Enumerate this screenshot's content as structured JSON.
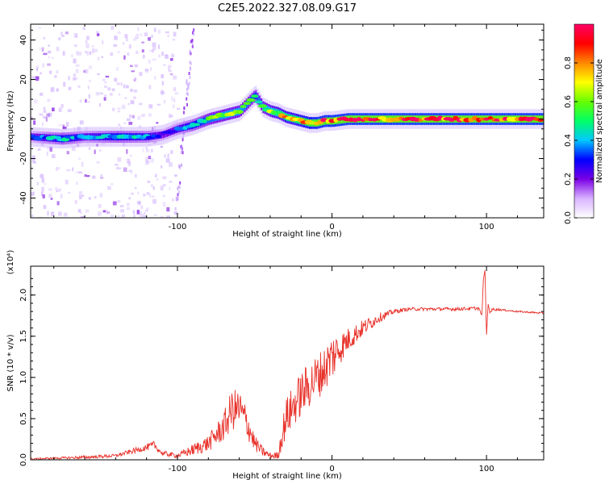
{
  "title": "C2E5.2022.327.08.09.G17",
  "chart_data": [
    {
      "type": "heatmap",
      "xlabel": "Height of straight line (km)",
      "ylabel": "Frequency (Hz)",
      "xlim": [
        -195,
        137
      ],
      "ylim": [
        -50,
        48
      ],
      "x_ticks": [
        -100,
        0,
        100
      ],
      "y_ticks": [
        -40,
        -20,
        0,
        20,
        40
      ],
      "colorbar": {
        "label": "Normalized spectral amplitude",
        "range": [
          0,
          1
        ],
        "ticks": [
          "0.0",
          "0.2",
          "0.4",
          "0.6",
          "0.8"
        ],
        "colors": [
          "#ffffff",
          "#d9b3ff",
          "#7a00e6",
          "#0000ff",
          "#00c8ff",
          "#00ff66",
          "#66ff00",
          "#ffff00",
          "#ff8800",
          "#ff0000",
          "#ff0066"
        ]
      },
      "ridge": {
        "x": [
          -195,
          -175,
          -160,
          -140,
          -120,
          -110,
          -100,
          -90,
          -80,
          -70,
          -60,
          -55,
          -50,
          -45,
          -40,
          -35,
          -30,
          -25,
          -20,
          -15,
          -10,
          -5,
          0,
          10,
          20,
          40,
          60,
          80,
          100,
          120,
          137
        ],
        "frequency": [
          -9,
          -10,
          -9,
          -9,
          -9,
          -8,
          -5,
          -3,
          0,
          2,
          4,
          8,
          12,
          6,
          4,
          3,
          1,
          0,
          -1,
          -2,
          -2,
          -1,
          -1,
          0,
          0,
          0,
          0,
          0,
          0,
          0,
          0
        ],
        "amplitude": [
          0.3,
          0.45,
          0.35,
          0.45,
          0.4,
          0.3,
          0.35,
          0.45,
          0.55,
          0.6,
          0.6,
          0.55,
          0.5,
          0.6,
          0.65,
          0.7,
          0.75,
          0.75,
          0.8,
          0.85,
          0.9,
          0.9,
          0.9,
          0.92,
          0.92,
          0.92,
          0.92,
          0.92,
          0.92,
          0.92,
          0.92
        ]
      }
    },
    {
      "type": "line",
      "xlabel": "Height of straight line (km)",
      "ylabel": "SNR (10 * v/v)",
      "y_multiplier": "(x10⁴)",
      "xlim": [
        -195,
        137
      ],
      "ylim": [
        0,
        2.35
      ],
      "x_ticks": [
        -100,
        0,
        100
      ],
      "y_ticks": [
        "0.0",
        "0.5",
        "1.0",
        "1.5",
        "2.0"
      ],
      "series": [
        {
          "color": "#e8322b",
          "x": [
            -195,
            -180,
            -160,
            -140,
            -130,
            -120,
            -115,
            -110,
            -100,
            -90,
            -80,
            -70,
            -65,
            -60,
            -55,
            -50,
            -45,
            -40,
            -35,
            -30,
            -25,
            -20,
            -15,
            -10,
            -5,
            0,
            5,
            10,
            20,
            30,
            40,
            50,
            60,
            80,
            95,
            97,
            98,
            99,
            100,
            101,
            102,
            105,
            110,
            120,
            137
          ],
          "mean": [
            0.01,
            0.02,
            0.03,
            0.05,
            0.1,
            0.15,
            0.18,
            0.08,
            0.05,
            0.12,
            0.2,
            0.4,
            0.6,
            0.62,
            0.45,
            0.2,
            0.1,
            0.05,
            0.05,
            0.5,
            0.65,
            0.8,
            0.9,
            1.0,
            1.1,
            1.25,
            1.35,
            1.45,
            1.6,
            1.72,
            1.8,
            1.83,
            1.83,
            1.83,
            1.84,
            1.75,
            2.2,
            2.3,
            1.5,
            1.9,
            1.8,
            1.83,
            1.82,
            1.8,
            1.78
          ],
          "noise": [
            0.01,
            0.01,
            0.02,
            0.02,
            0.03,
            0.04,
            0.05,
            0.03,
            0.03,
            0.07,
            0.1,
            0.18,
            0.25,
            0.25,
            0.2,
            0.1,
            0.06,
            0.04,
            0.05,
            0.25,
            0.25,
            0.28,
            0.28,
            0.28,
            0.28,
            0.3,
            0.2,
            0.15,
            0.1,
            0.06,
            0.03,
            0.02,
            0.02,
            0.02,
            0.02,
            0.0,
            0.0,
            0.0,
            0.0,
            0.0,
            0.02,
            0.02,
            0.01,
            0.01,
            0.01
          ]
        }
      ]
    }
  ]
}
